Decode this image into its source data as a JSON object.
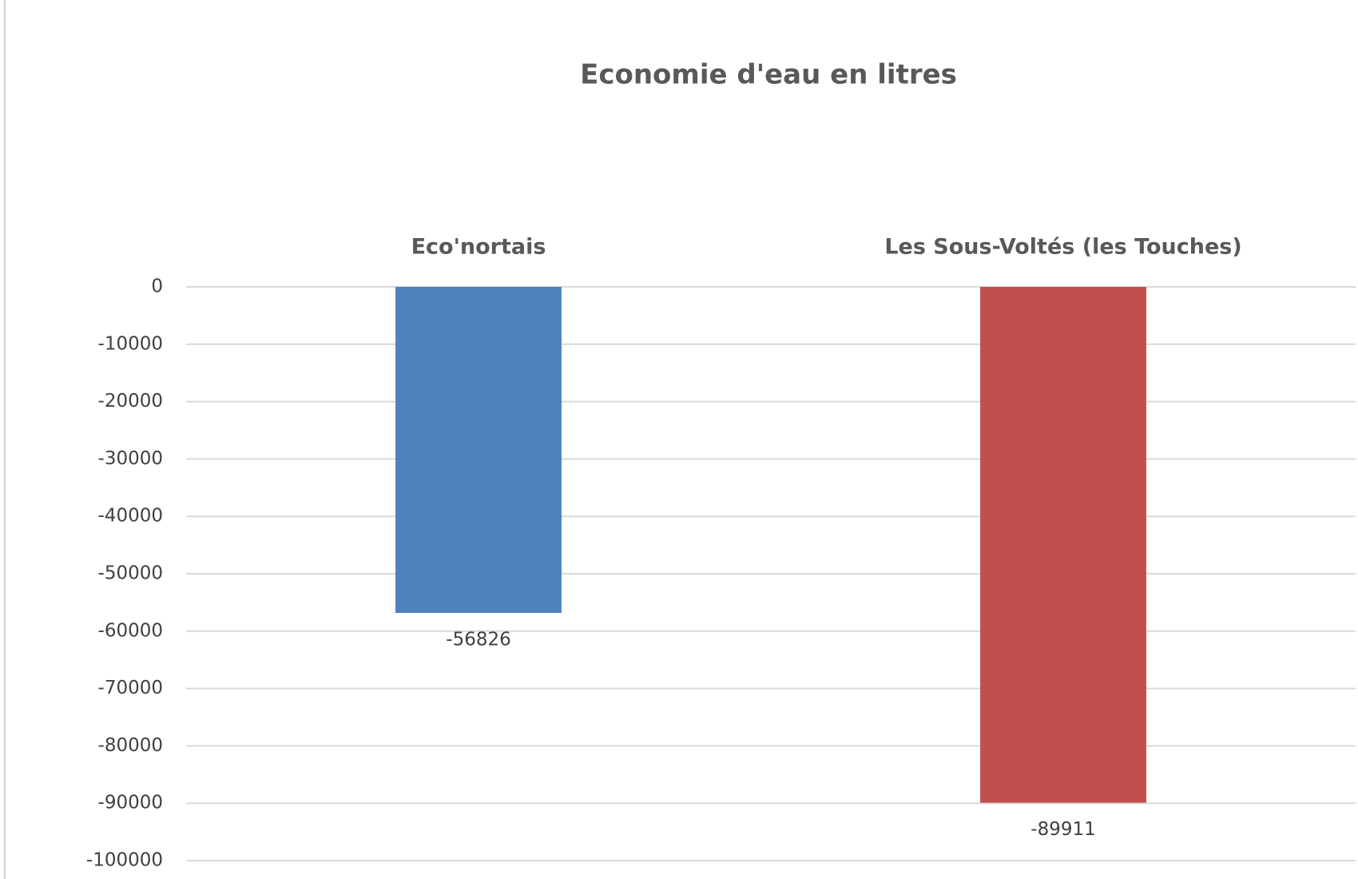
{
  "chart_data": {
    "type": "bar",
    "title": "Economie d'eau en litres",
    "categories": [
      "Eco'nortais",
      "Les Sous-Voltés (les Touches)"
    ],
    "values": [
      -56826,
      -89911
    ],
    "colors": [
      "#4f81bd",
      "#c0504d"
    ],
    "ylim": [
      -100000,
      0
    ],
    "yticks": [
      0,
      -10000,
      -20000,
      -30000,
      -40000,
      -50000,
      -60000,
      -70000,
      -80000,
      -90000,
      -100000
    ],
    "grid": true
  }
}
